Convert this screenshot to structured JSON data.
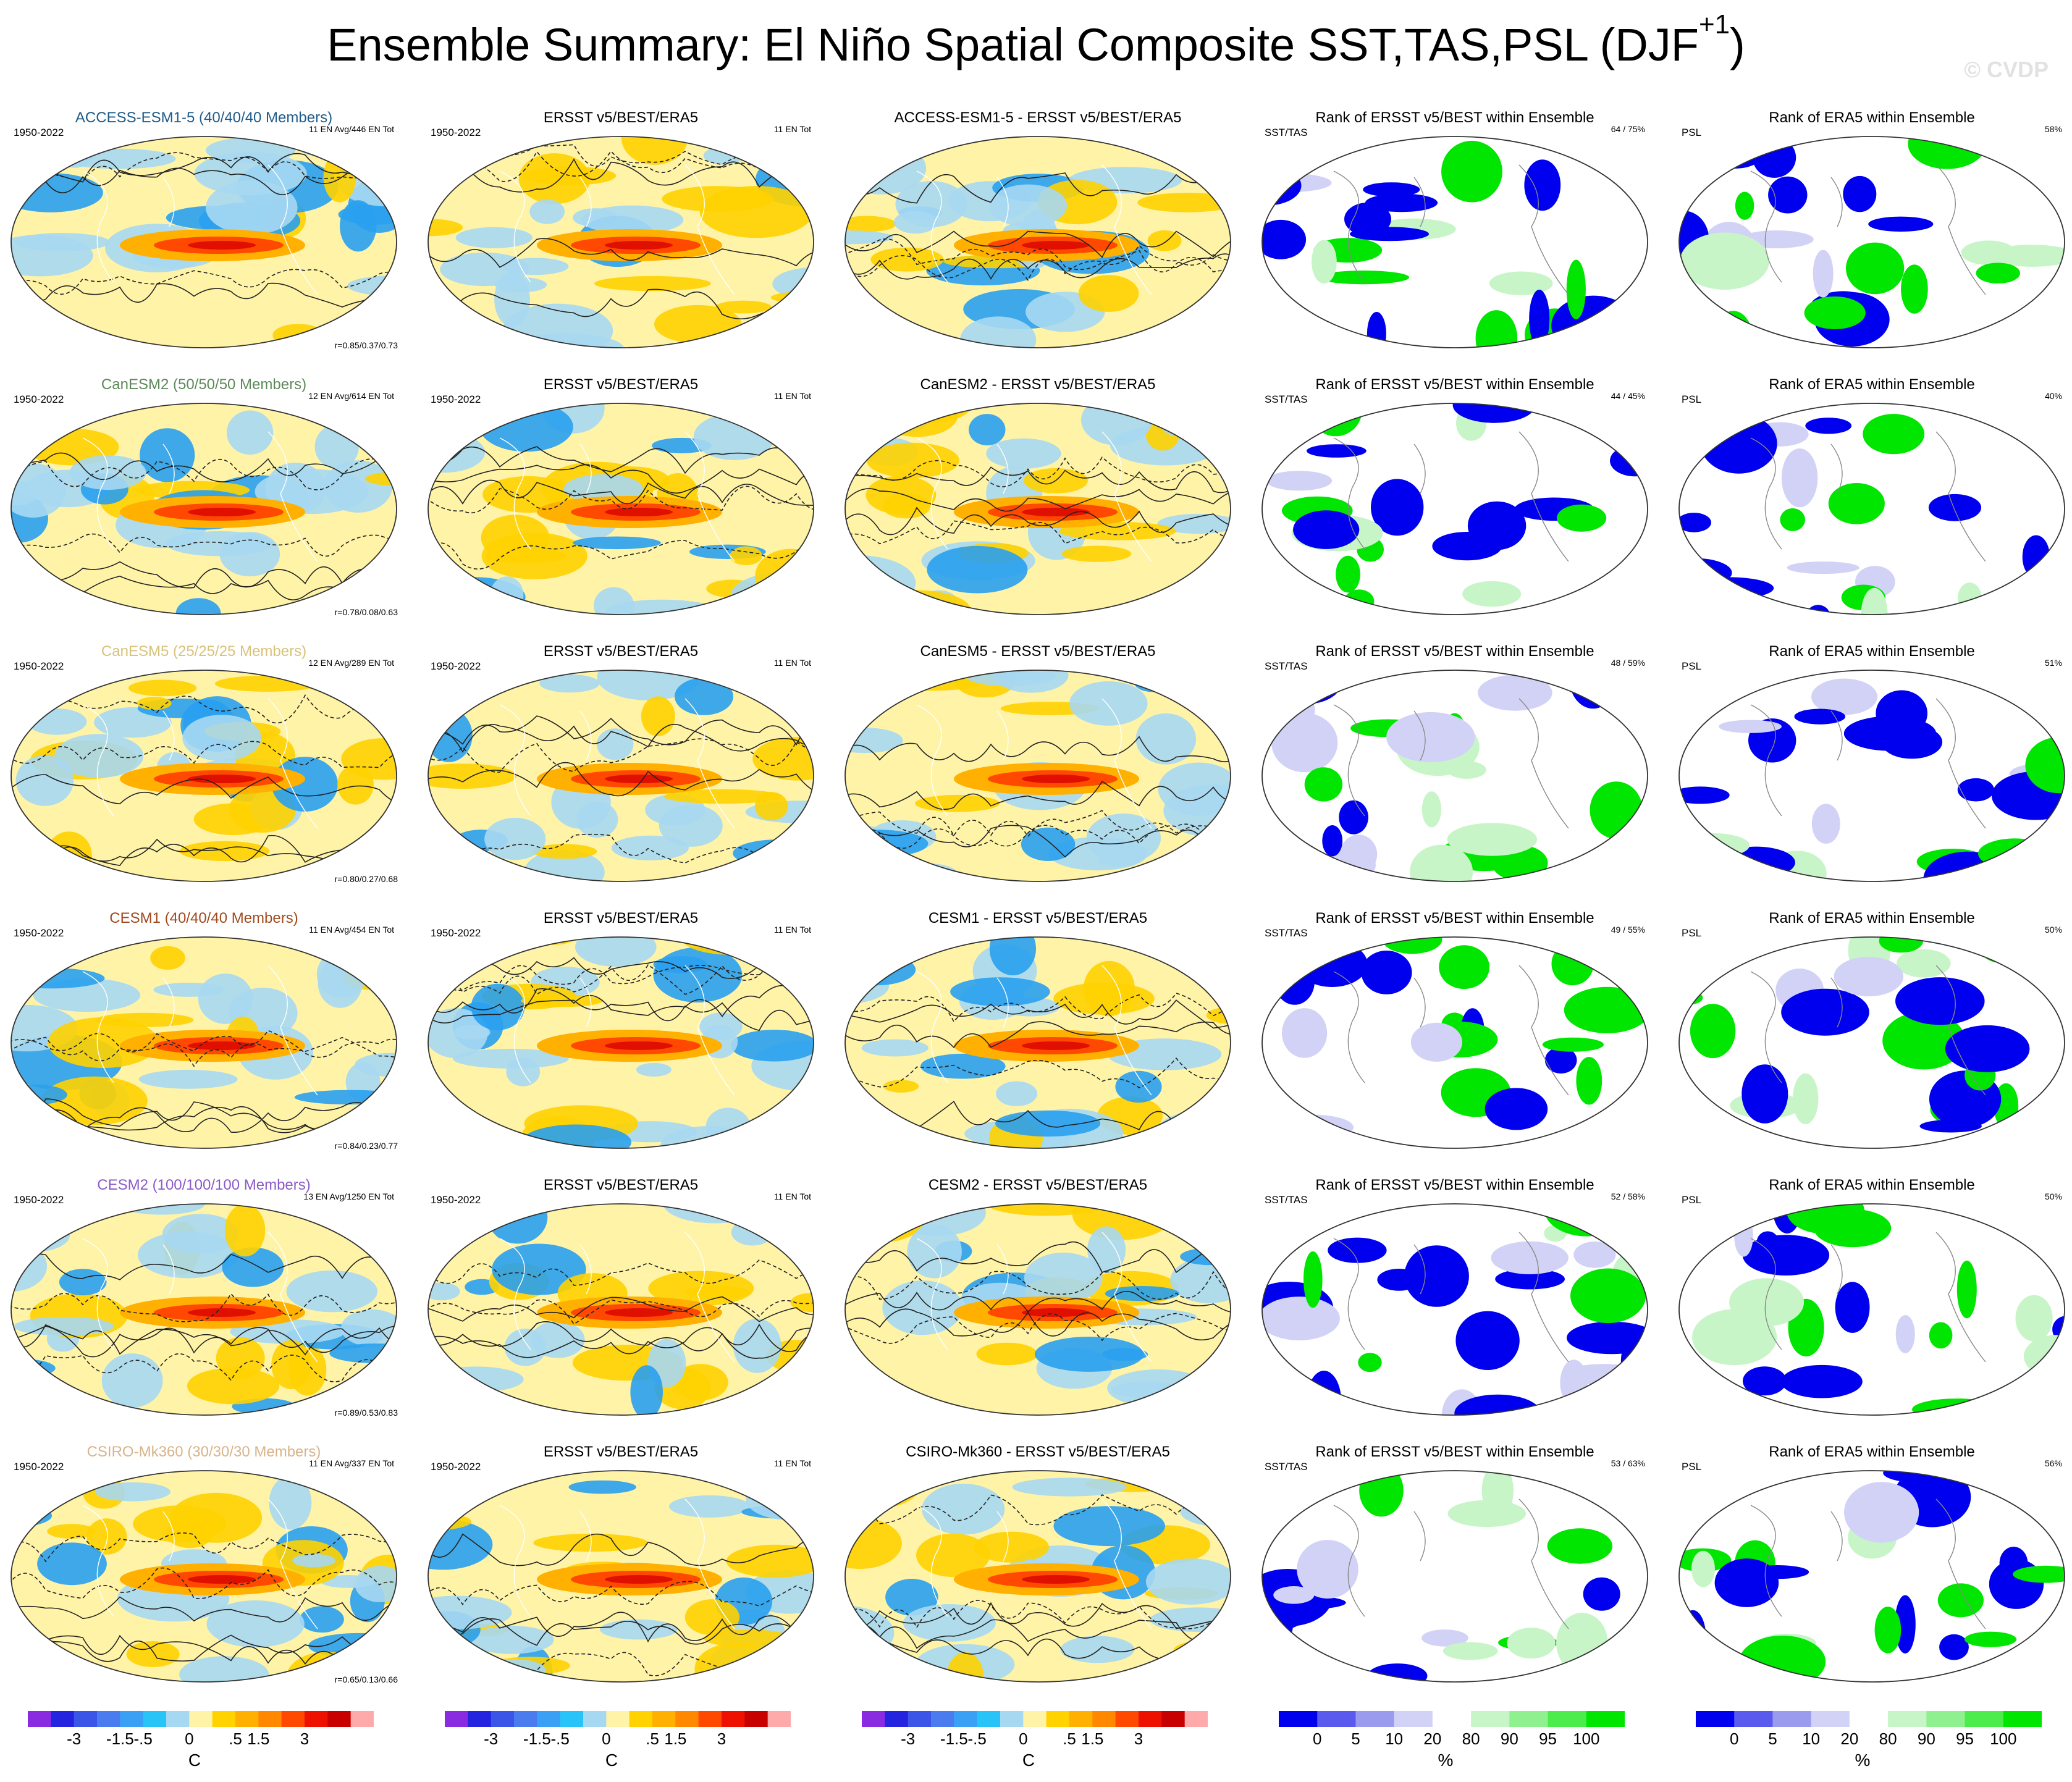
{
  "title": {
    "main": "Ensemble Summary: El Niño Spatial Composite SST,TAS,PSL (DJF",
    "superscript": "+1",
    "close": ")"
  },
  "watermark": "© CVDP",
  "rows": [
    {
      "model_label": "ACCESS-ESM1-5 (40/40/40 Members)",
      "model_color": "#1f5c8a",
      "period": "1950-2022",
      "ens_info": "11 EN Avg/446 EN Tot",
      "corr": "r=0.85/0.37/0.73",
      "obs_title": "ERSST v5/BEST/ERA5",
      "obs_period": "1950-2022",
      "obs_info": "11 EN Tot",
      "diff_title": "ACCESS-ESM1-5 - ERSST v5/BEST/ERA5",
      "rank_sst_title": "Rank of ERSST v5/BEST within Ensemble",
      "rank_sst_left": "SST/TAS",
      "rank_sst_pct": "64 /  75%",
      "rank_psl_title": "Rank of ERA5 within Ensemble",
      "rank_psl_left": "PSL",
      "rank_psl_pct": "58%"
    },
    {
      "model_label": "CanESM2 (50/50/50 Members)",
      "model_color": "#5e8a5a",
      "period": "1950-2022",
      "ens_info": "12 EN Avg/614 EN Tot",
      "corr": "r=0.78/0.08/0.63",
      "obs_title": "ERSST v5/BEST/ERA5",
      "obs_period": "1950-2022",
      "obs_info": "11 EN Tot",
      "diff_title": "CanESM2 - ERSST v5/BEST/ERA5",
      "rank_sst_title": "Rank of ERSST v5/BEST within Ensemble",
      "rank_sst_left": "SST/TAS",
      "rank_sst_pct": "44 /  45%",
      "rank_psl_title": "Rank of ERA5 within Ensemble",
      "rank_psl_left": "PSL",
      "rank_psl_pct": "40%"
    },
    {
      "model_label": "CanESM5 (25/25/25 Members)",
      "model_color": "#d8c27a",
      "period": "1950-2022",
      "ens_info": "12 EN Avg/289 EN Tot",
      "corr": "r=0.80/0.27/0.68",
      "obs_title": "ERSST v5/BEST/ERA5",
      "obs_period": "1950-2022",
      "obs_info": "11 EN Tot",
      "diff_title": "CanESM5 - ERSST v5/BEST/ERA5",
      "rank_sst_title": "Rank of ERSST v5/BEST within Ensemble",
      "rank_sst_left": "SST/TAS",
      "rank_sst_pct": "48 /  59%",
      "rank_psl_title": "Rank of ERA5 within Ensemble",
      "rank_psl_left": "PSL",
      "rank_psl_pct": "51%"
    },
    {
      "model_label": "CESM1 (40/40/40 Members)",
      "model_color": "#a04a1e",
      "period": "1950-2022",
      "ens_info": "11 EN Avg/454 EN Tot",
      "corr": "r=0.84/0.23/0.77",
      "obs_title": "ERSST v5/BEST/ERA5",
      "obs_period": "1950-2022",
      "obs_info": "11 EN Tot",
      "diff_title": "CESM1 - ERSST v5/BEST/ERA5",
      "rank_sst_title": "Rank of ERSST v5/BEST within Ensemble",
      "rank_sst_left": "SST/TAS",
      "rank_sst_pct": "49 /  55%",
      "rank_psl_title": "Rank of ERA5 within Ensemble",
      "rank_psl_left": "PSL",
      "rank_psl_pct": "50%"
    },
    {
      "model_label": "CESM2 (100/100/100 Members)",
      "model_color": "#8a5ac8",
      "period": "1950-2022",
      "ens_info": "13 EN Avg/1250 EN Tot",
      "corr": "r=0.89/0.53/0.83",
      "obs_title": "ERSST v5/BEST/ERA5",
      "obs_period": "1950-2022",
      "obs_info": "11 EN Tot",
      "diff_title": "CESM2 - ERSST v5/BEST/ERA5",
      "rank_sst_title": "Rank of ERSST v5/BEST within Ensemble",
      "rank_sst_left": "SST/TAS",
      "rank_sst_pct": "52 /  58%",
      "rank_psl_title": "Rank of ERA5 within Ensemble",
      "rank_psl_left": "PSL",
      "rank_psl_pct": "50%"
    },
    {
      "model_label": "CSIRO-Mk360 (30/30/30 Members)",
      "model_color": "#d8b48a",
      "period": "1950-2022",
      "ens_info": "11 EN Avg/337 EN Tot",
      "corr": "r=0.65/0.13/0.66",
      "obs_title": "ERSST v5/BEST/ERA5",
      "obs_period": "1950-2022",
      "obs_info": "11 EN Tot",
      "diff_title": "CSIRO-Mk360 - ERSST v5/BEST/ERA5",
      "rank_sst_title": "Rank of ERSST v5/BEST within Ensemble",
      "rank_sst_left": "SST/TAS",
      "rank_sst_pct": "53 /  63%",
      "rank_psl_title": "Rank of ERA5 within Ensemble",
      "rank_psl_left": "PSL",
      "rank_psl_pct": "56%"
    }
  ],
  "colorbars": {
    "temperature": {
      "ticks": [
        "-3",
        "-1.5",
        "-.5",
        "0",
        ".5",
        "1.5",
        "3"
      ],
      "unit": "C",
      "colors": [
        "#8a2be2",
        "#2323e0",
        "#3a55e8",
        "#4a7cf0",
        "#39a0f5",
        "#29c4f7",
        "#a7d8f2",
        "#fff3a8",
        "#ffd200",
        "#ffb000",
        "#ff8800",
        "#ff4800",
        "#ee1100",
        "#c80000",
        "#ffaaaa"
      ]
    },
    "rank": {
      "ticks": [
        "0",
        "5",
        "10",
        "20",
        "80",
        "90",
        "95",
        "100"
      ],
      "unit": "%",
      "colors": [
        "#0000ee",
        "#5a5aee",
        "#9a9aee",
        "#d2d2f6",
        "#ffffff",
        "#c8f5c8",
        "#8ef08e",
        "#4cec4c",
        "#00e600"
      ]
    }
  },
  "palettes": {
    "sst_fill": [
      "#a7d8f2",
      "#fff3a8",
      "#ffd200",
      "#ffb000",
      "#ff8800",
      "#ff4800",
      "#e01000",
      "#29a0f0"
    ],
    "rank_fill": [
      "#ffffff",
      "#0000ee",
      "#00e600",
      "#d2d2f6",
      "#c8f5c8"
    ]
  }
}
